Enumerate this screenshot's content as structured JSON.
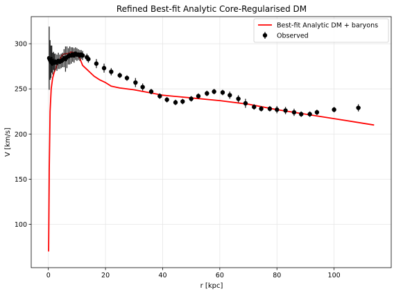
{
  "chart_data": {
    "type": "line",
    "title": "Refined Best-fit Analytic Core-Regularised DM",
    "xlabel": "r [kpc]",
    "ylabel": "V [km/s]",
    "xlim": [
      -6,
      120
    ],
    "ylim": [
      52,
      330
    ],
    "xticks": [
      0,
      20,
      40,
      60,
      80,
      100
    ],
    "yticks": [
      100,
      150,
      200,
      250,
      300
    ],
    "grid": true,
    "legend_position": "top-right",
    "colors": {
      "model": "#ff0000",
      "observed": "#000000",
      "grid": "#e6e6e6"
    },
    "series": [
      {
        "name": "Best-fit Analytic DM + baryons",
        "kind": "line",
        "x": [
          0.1,
          0.3,
          0.6,
          1.0,
          1.5,
          2.0,
          3.0,
          4.0,
          5.0,
          6.0,
          7.0,
          8.0,
          9.0,
          10.0,
          11.0,
          12.0,
          14.0,
          16.0,
          18.0,
          20.0,
          22.0,
          25.0,
          30.0,
          35.0,
          40.0,
          50.0,
          60.0,
          70.0,
          80.0,
          90.0,
          100.0,
          114.0
        ],
        "y": [
          70,
          160,
          225,
          250,
          262,
          268,
          276,
          283,
          288,
          289,
          289,
          291,
          290,
          288,
          284,
          276,
          270,
          264,
          260,
          257,
          253,
          251,
          249,
          246,
          243,
          240,
          237,
          233,
          227,
          222,
          217,
          210
        ]
      },
      {
        "name": "Observed",
        "kind": "errorbar",
        "x": [
          0.3,
          0.6,
          0.9,
          1.2,
          1.5,
          1.8,
          2.1,
          2.5,
          3.0,
          3.5,
          4.0,
          4.5,
          5.0,
          5.5,
          6.0,
          6.5,
          7.0,
          7.5,
          8.0,
          8.5,
          9.0,
          9.5,
          10.0,
          10.5,
          11.0,
          11.5,
          12.0,
          13.5,
          14.0,
          16.8,
          19.5,
          22.0,
          25.0,
          27.5,
          30.5,
          33.0,
          36.0,
          39.0,
          41.5,
          44.5,
          47.0,
          50.0,
          52.5,
          55.5,
          58.0,
          61.0,
          63.5,
          66.5,
          69.0,
          72.0,
          74.5,
          77.5,
          80.0,
          83.0,
          86.0,
          88.5,
          91.5,
          94.0,
          100.0,
          108.5
        ],
        "y": [
          284,
          282,
          280,
          283,
          278,
          281,
          279,
          280,
          279,
          281,
          280,
          281,
          282,
          284,
          283,
          285,
          286,
          287,
          287,
          288,
          287,
          289,
          288,
          288,
          287,
          288,
          287,
          285,
          283,
          278,
          273,
          269,
          265,
          262,
          257,
          252,
          247,
          242,
          238,
          235,
          236,
          239,
          242,
          245,
          247,
          246,
          243,
          239,
          234,
          230,
          228,
          228,
          227,
          226,
          224,
          222,
          222,
          224,
          227,
          229
        ],
        "err": [
          35,
          22,
          18,
          15,
          12,
          10,
          10,
          9,
          9,
          9,
          8,
          8,
          8,
          10,
          14,
          12,
          9,
          10,
          9,
          8,
          8,
          7,
          7,
          6,
          6,
          5,
          5,
          4,
          4,
          5,
          5,
          4,
          3,
          3,
          5,
          4,
          3,
          3,
          3,
          3,
          3,
          3,
          3,
          3,
          3,
          3,
          4,
          4,
          5,
          3,
          3,
          3,
          4,
          4,
          4,
          3,
          3,
          3,
          3,
          4
        ]
      }
    ]
  }
}
